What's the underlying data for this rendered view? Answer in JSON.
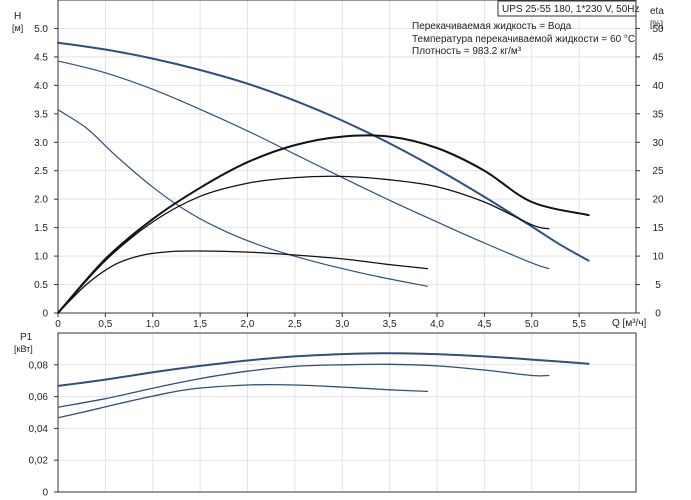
{
  "colors": {
    "background": "#ffffff",
    "axis": "#333333",
    "grid": "#e3e3e3",
    "head_curve": "#2e4f7f",
    "eta_curve": "#111111",
    "power_curve": "#2e4f7f"
  },
  "model_label": "UPS 25-55 180, 1*230 V, 50Hz",
  "fluid_info": [
    "Перекачиваемая жидкость = Вода",
    "Температура перекачиваемой жидкости = 60 °C",
    "Плотность = 983.2 кг/м³"
  ],
  "chart_data": [
    {
      "type": "line",
      "panel": "head-efficiency",
      "xlabel": "Q [м³/ч]",
      "ylabel": "H",
      "ylabel_unit": "[м]",
      "y2label": "eta",
      "y2label_unit": "[%]",
      "xlim": [
        0,
        6.1
      ],
      "ylim": [
        0,
        5.5
      ],
      "y2lim": [
        0,
        55
      ],
      "x_ticks": [
        "0",
        "0,5",
        "1,0",
        "1,5",
        "2,0",
        "2,5",
        "3,0",
        "3,5",
        "4,0",
        "4,5",
        "5,0",
        "5,5"
      ],
      "y_ticks": [
        "0",
        "0.5",
        "1.0",
        "1.5",
        "2.0",
        "2.5",
        "3.0",
        "3.5",
        "4.0",
        "4.5",
        "5.0"
      ],
      "y2_ticks": [
        "0",
        "5",
        "10",
        "15",
        "20",
        "25",
        "30",
        "35",
        "40",
        "45",
        "50"
      ],
      "grid": true,
      "head_series": [
        {
          "x": [
            0,
            0.5,
            1.0,
            1.5,
            2.0,
            2.5,
            3.0,
            3.5,
            4.0,
            4.5,
            5.0,
            5.3,
            5.6
          ],
          "y": [
            4.75,
            4.63,
            4.47,
            4.27,
            4.03,
            3.73,
            3.38,
            2.98,
            2.53,
            2.04,
            1.52,
            1.2,
            0.92
          ]
        },
        {
          "x": [
            0,
            0.5,
            1.0,
            1.5,
            2.0,
            2.5,
            3.0,
            3.5,
            4.0,
            4.5,
            5.0,
            5.18
          ],
          "y": [
            4.43,
            4.22,
            3.93,
            3.58,
            3.2,
            2.79,
            2.38,
            1.98,
            1.6,
            1.23,
            0.88,
            0.78
          ]
        },
        {
          "x": [
            0,
            0.3,
            0.6,
            1.0,
            1.4,
            1.8,
            2.2,
            2.6,
            3.0,
            3.4,
            3.9
          ],
          "y": [
            3.57,
            3.25,
            2.78,
            2.21,
            1.75,
            1.41,
            1.15,
            0.95,
            0.78,
            0.63,
            0.47
          ]
        }
      ],
      "eta_series": [
        {
          "x": [
            0,
            0.5,
            1.0,
            1.5,
            2.0,
            2.5,
            3.0,
            3.5,
            4.0,
            4.5,
            5.0,
            5.6
          ],
          "y": [
            0,
            9.5,
            16.5,
            22,
            26.5,
            29.5,
            31,
            31,
            29,
            25,
            19.5,
            17.2
          ]
        },
        {
          "x": [
            0,
            0.5,
            1.0,
            1.5,
            2.0,
            2.5,
            3.0,
            3.5,
            4.0,
            4.5,
            5.0,
            5.18
          ],
          "y": [
            0,
            9.2,
            16,
            20.5,
            22.8,
            23.8,
            24,
            23.4,
            22.2,
            19.5,
            15.5,
            14.8
          ]
        },
        {
          "x": [
            0,
            0.3,
            0.6,
            0.9,
            1.2,
            1.5,
            2.0,
            2.5,
            3.0,
            3.5,
            3.9
          ],
          "y": [
            0,
            5,
            8.5,
            10.2,
            10.8,
            10.9,
            10.7,
            10.2,
            9.5,
            8.5,
            7.8
          ]
        }
      ]
    },
    {
      "type": "line",
      "panel": "power",
      "ylabel": "P1",
      "ylabel_unit": "[кВт]",
      "xlim": [
        0,
        6.1
      ],
      "ylim": [
        0,
        0.1
      ],
      "y_ticks": [
        "0",
        "0,02",
        "0,04",
        "0,06",
        "0,08"
      ],
      "grid": true,
      "series": [
        {
          "x": [
            0,
            0.5,
            1.0,
            1.5,
            2.0,
            2.5,
            3.0,
            3.5,
            4.0,
            4.5,
            5.0,
            5.6
          ],
          "y": [
            0.0667,
            0.0707,
            0.0753,
            0.0793,
            0.0827,
            0.0853,
            0.0867,
            0.0873,
            0.0867,
            0.0853,
            0.0833,
            0.0807
          ]
        },
        {
          "x": [
            0,
            0.5,
            1.0,
            1.5,
            2.0,
            2.5,
            3.0,
            3.5,
            4.0,
            4.5,
            5.0,
            5.18
          ],
          "y": [
            0.0533,
            0.0587,
            0.0653,
            0.0713,
            0.076,
            0.079,
            0.08,
            0.0803,
            0.0793,
            0.0767,
            0.0733,
            0.0733
          ]
        },
        {
          "x": [
            0,
            0.3,
            0.6,
            1.0,
            1.4,
            2.0,
            2.5,
            3.0,
            3.5,
            3.9
          ],
          "y": [
            0.0467,
            0.0507,
            0.055,
            0.0603,
            0.0647,
            0.0673,
            0.0673,
            0.066,
            0.0643,
            0.0633
          ]
        }
      ]
    }
  ]
}
